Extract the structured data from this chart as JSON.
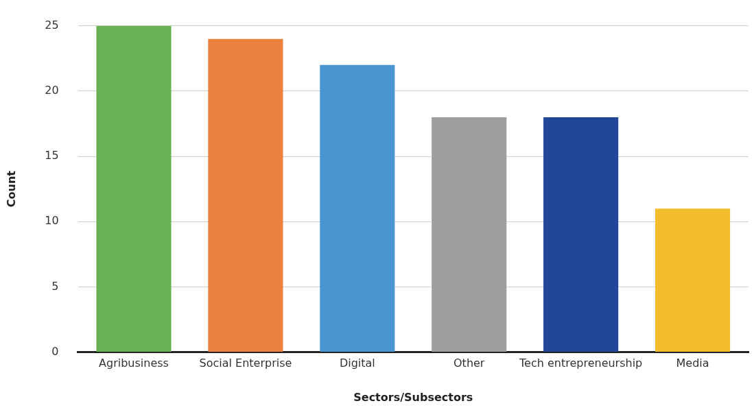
{
  "chart_data": {
    "type": "bar",
    "xlabel": "Sectors/Subsectors",
    "ylabel": "Count",
    "categories": [
      "Agribusiness",
      "Social Enterprise",
      "Digital",
      "Other",
      "Tech entrepreneurship",
      "Media"
    ],
    "values": [
      25,
      24,
      22,
      18,
      18,
      11
    ],
    "colors": [
      "#6ab155",
      "#ed8140",
      "#4a96d0",
      "#9d9ea0",
      "#22479a",
      "#f4bd2d"
    ],
    "ylim": [
      0,
      25
    ],
    "yticks": [
      0,
      5,
      10,
      15,
      20,
      25
    ],
    "grid": "y",
    "legend": false
  }
}
